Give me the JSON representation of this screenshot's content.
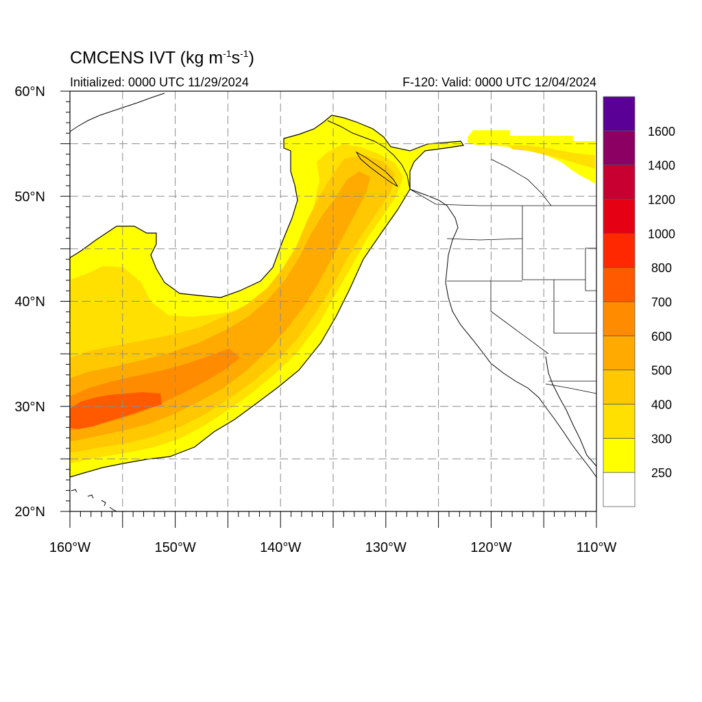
{
  "title": {
    "main_prefix": "CMCENS IVT (kg m",
    "exp1": "-1",
    "main_mid": "s",
    "exp2": "-1",
    "main_suffix": ")"
  },
  "subtitle_left": "Initialized: 0000 UTC 11/29/2024",
  "subtitle_right": "F-120: Valid: 0000 UTC 12/04/2024",
  "map": {
    "lon_range": [
      -160,
      -110
    ],
    "lat_range": [
      20,
      60
    ],
    "grid": "dashed, every 5 degrees",
    "lon_labels": [
      "160°W",
      "150°W",
      "140°W",
      "130°W",
      "120°W",
      "110°W"
    ],
    "lat_labels": [
      "20°N",
      "30°N",
      "40°N",
      "50°N",
      "60°N"
    ]
  },
  "colorbar": {
    "levels": [
      "250",
      "300",
      "400",
      "500",
      "600",
      "700",
      "800",
      "1000",
      "1200",
      "1400",
      "1600"
    ],
    "colors": [
      "#ffffff",
      "#ffff00",
      "#ffe000",
      "#ffc800",
      "#ffaa00",
      "#ff8c00",
      "#ff5a00",
      "#ff2800",
      "#e60014",
      "#c80032",
      "#8c0064",
      "#5a0096"
    ]
  },
  "ivt_plume_colors": {
    "band_250": "#ffff00",
    "band_300": "#ffe000",
    "band_400": "#ffc800",
    "band_500": "#ffaa00",
    "band_600": "#ff8c00",
    "band_700": "#ff5a00"
  }
}
